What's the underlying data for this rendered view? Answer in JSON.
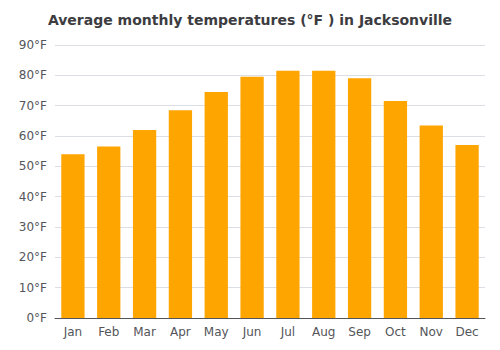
{
  "chart_data": {
    "type": "bar",
    "title": "Average monthly temperatures (°F ) in Jacksonville",
    "categories": [
      "Jan",
      "Feb",
      "Mar",
      "Apr",
      "May",
      "Jun",
      "Jul",
      "Aug",
      "Sep",
      "Oct",
      "Nov",
      "Dec"
    ],
    "values": [
      54,
      56.5,
      62,
      68.5,
      74.5,
      79.5,
      81.5,
      81.5,
      79,
      71.5,
      63.5,
      57
    ],
    "color": "#FFA500",
    "ylim": [
      0,
      90
    ],
    "yticks": [
      {
        "value": 0,
        "label": "0°F"
      },
      {
        "value": 10,
        "label": "10°F"
      },
      {
        "value": 20,
        "label": "20°F"
      },
      {
        "value": 30,
        "label": "30°F"
      },
      {
        "value": 40,
        "label": "40°F"
      },
      {
        "value": 50,
        "label": "50°F"
      },
      {
        "value": 60,
        "label": "60°F"
      },
      {
        "value": 70,
        "label": "70°F"
      },
      {
        "value": 80,
        "label": "80°F"
      },
      {
        "value": 90,
        "label": "90°F"
      }
    ],
    "grid": true
  }
}
